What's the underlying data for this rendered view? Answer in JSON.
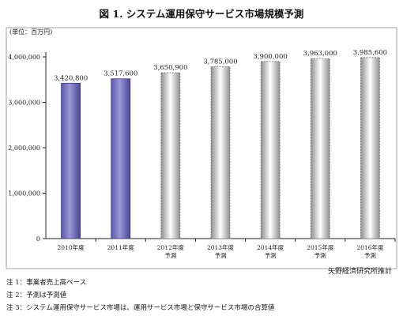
{
  "chart_data": {
    "type": "bar",
    "title": "図 1. システム運用保守サービス市場規模予測",
    "unit_label": "(単位：百万円)",
    "categories": [
      [
        "2010年度"
      ],
      [
        "2011年度"
      ],
      [
        "2012年度",
        "予測"
      ],
      [
        "2013年度",
        "予測"
      ],
      [
        "2014年度",
        "予測"
      ],
      [
        "2015年度",
        "予測"
      ],
      [
        "2016年度",
        "予測"
      ]
    ],
    "values": [
      3420800,
      3517600,
      3650900,
      3785000,
      3900000,
      3963000,
      3985600
    ],
    "value_labels": [
      "3,420,800",
      "3,517,600",
      "3,650,900",
      "3,785,000",
      "3,900,000",
      "3,963,000",
      "3,985,600"
    ],
    "forecast": [
      false,
      false,
      true,
      true,
      true,
      true,
      true
    ],
    "ylim": [
      0,
      4000000
    ],
    "yticks": [
      0,
      1000000,
      2000000,
      3000000,
      4000000
    ],
    "ytick_labels": [
      "0",
      "1,000,000",
      "2,000,000",
      "3,000,000",
      "4,000,000"
    ],
    "grid": false,
    "source": "矢野経済研究所推計",
    "colors": {
      "actual": "#7c78c0",
      "actual_dark": "#3f3a85",
      "forecast_light": "#ffffff",
      "forecast_mid": "#b0b0b0",
      "forecast_edge": "#6e6e6e",
      "axis": "#222222",
      "frame": "#8a8a8a"
    }
  },
  "notes": [
    "注 1：事業者売上高ベース",
    "注 2：予測は予測値",
    "注 3：システム運用保守サービス市場は、運用サービス市場と保守サービス市場の合算値"
  ]
}
